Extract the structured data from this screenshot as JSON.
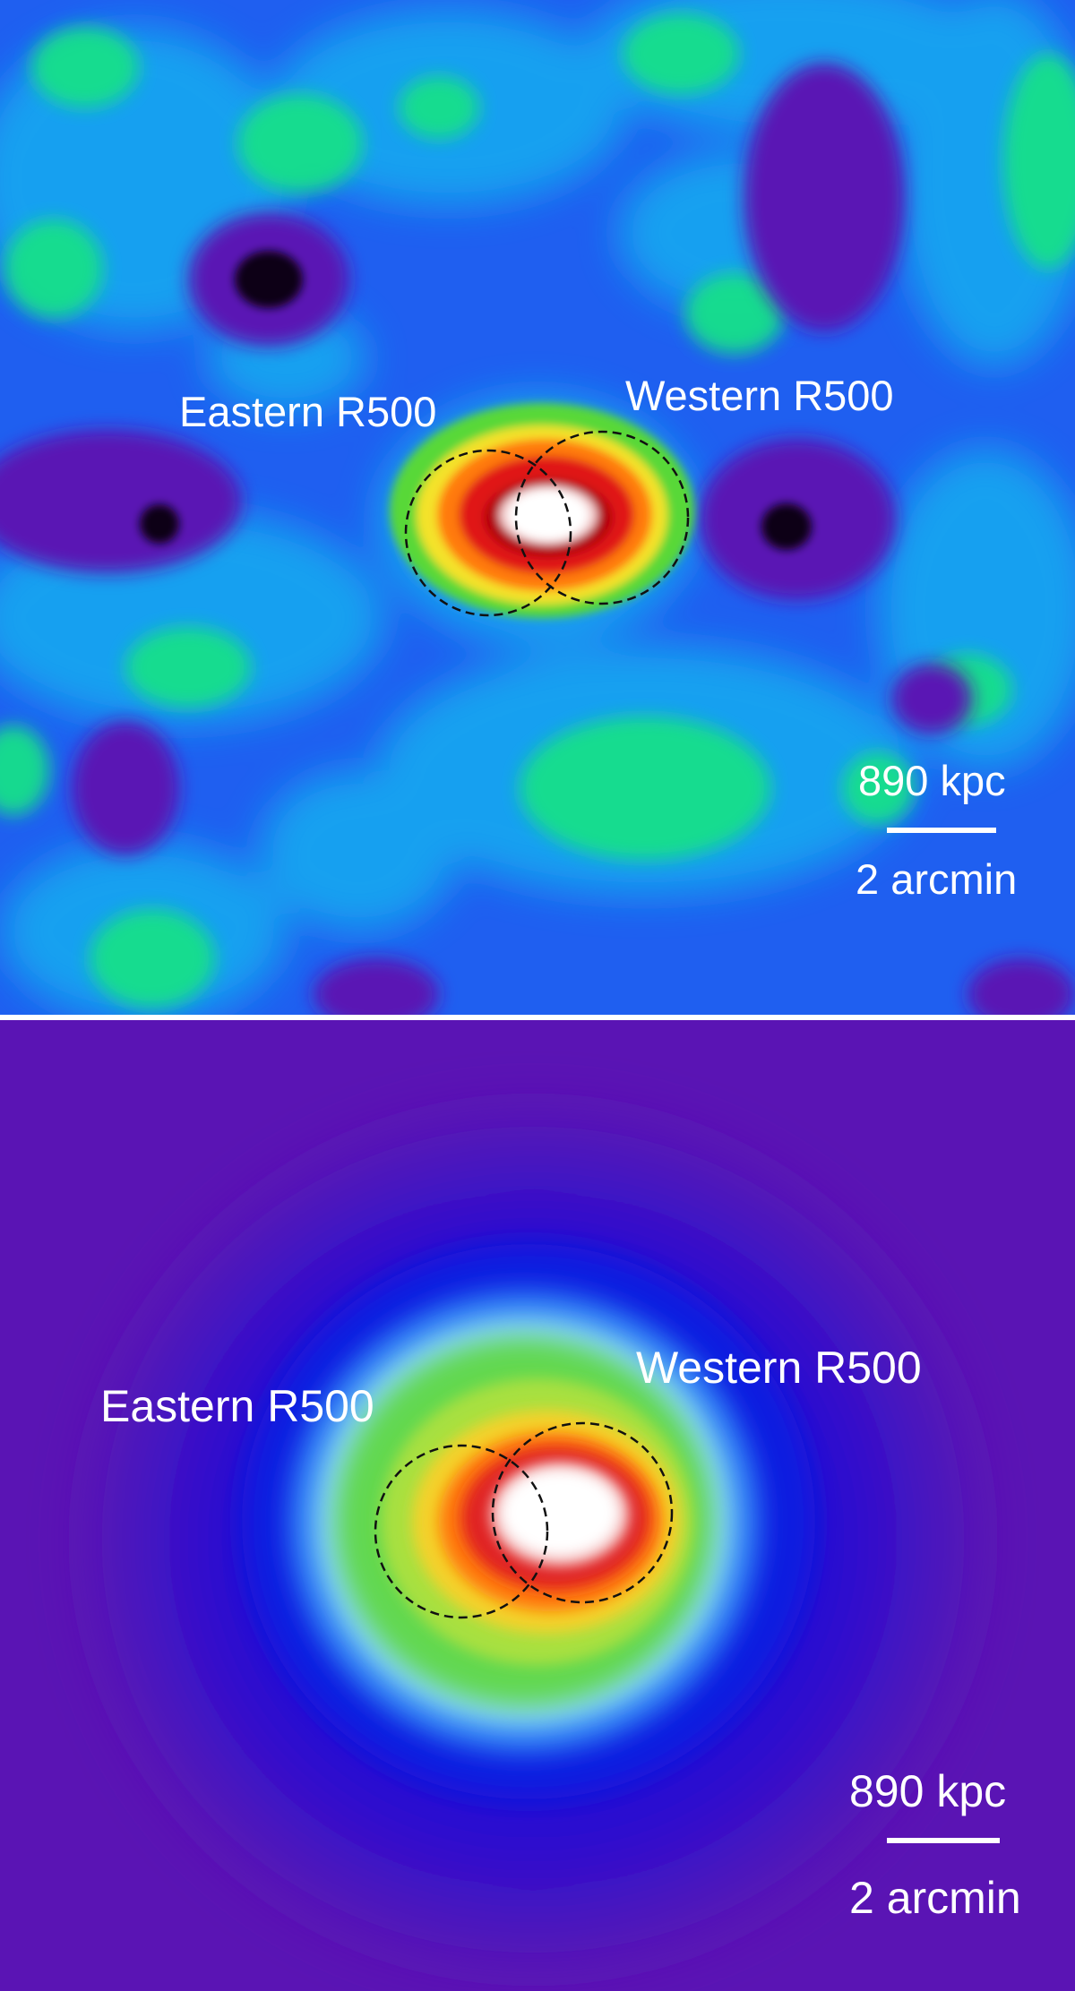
{
  "panels": {
    "top": {
      "eastern_label": "Eastern R500",
      "western_label": "Western R500",
      "scale_distance": "890 kpc",
      "scale_angle": "2 arcmin"
    },
    "bottom": {
      "eastern_label": "Eastern R500",
      "western_label": "Western R500",
      "scale_distance": "890 kpc",
      "scale_angle": "2 arcmin"
    }
  },
  "colors": {
    "top_background": "#1f5ff0",
    "bottom_background": "#5a14b4",
    "circle_stroke": "#111111",
    "label_text": "#ffffff"
  },
  "icons": {
    "region_marker": "dashed-circle"
  }
}
